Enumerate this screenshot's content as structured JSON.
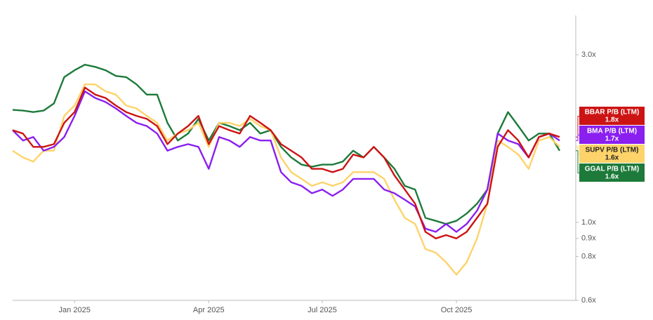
{
  "chart_data": {
    "type": "line",
    "log_scale": true,
    "grid": false,
    "categories": [
      null,
      null,
      null,
      null,
      null,
      null,
      "Jan 2025",
      null,
      null,
      null,
      null,
      null,
      null,
      null,
      null,
      null,
      null,
      null,
      null,
      "Apr 2025",
      null,
      null,
      null,
      null,
      null,
      null,
      null,
      null,
      null,
      null,
      "Jul 2025",
      null,
      null,
      null,
      null,
      null,
      null,
      null,
      null,
      null,
      null,
      null,
      null,
      "Oct 2025",
      null,
      null,
      null,
      null,
      null,
      null,
      null,
      null,
      null,
      null
    ],
    "ylim": [
      0.6,
      3.88
    ],
    "yticks": [
      {
        "value": 0.6,
        "label": "0.6x"
      },
      {
        "value": 0.8,
        "label": "0.8x"
      },
      {
        "value": 0.9,
        "label": "0.9x"
      },
      {
        "value": 1.0,
        "label": "1.0x"
      },
      {
        "value": 3.0,
        "label": "3.0x"
      }
    ],
    "series": [
      {
        "name": "BBAR P/B (LTM)",
        "color": "#cc1414",
        "last_label": "1.8x",
        "values": [
          1.83,
          1.79,
          1.64,
          1.64,
          1.67,
          1.92,
          2.06,
          2.42,
          2.31,
          2.26,
          2.15,
          2.06,
          2.01,
          1.97,
          1.88,
          1.67,
          1.79,
          1.88,
          2.01,
          1.67,
          1.88,
          1.83,
          1.79,
          2.01,
          1.92,
          1.83,
          1.67,
          1.6,
          1.53,
          1.42,
          1.42,
          1.39,
          1.42,
          1.56,
          1.53,
          1.64,
          1.53,
          1.36,
          1.24,
          1.13,
          0.94,
          0.9,
          0.92,
          0.9,
          0.94,
          1.03,
          1.13,
          1.64,
          1.83,
          1.71,
          1.53,
          1.75,
          1.79,
          1.75
        ]
      },
      {
        "name": "BMA P/B (LTM)",
        "color": "#8a1ff0",
        "last_label": "1.7x",
        "values": [
          1.83,
          1.71,
          1.75,
          1.6,
          1.64,
          1.75,
          2.01,
          2.36,
          2.26,
          2.2,
          2.11,
          2.01,
          1.92,
          1.88,
          1.79,
          1.6,
          1.64,
          1.67,
          1.64,
          1.42,
          1.75,
          1.71,
          1.64,
          1.75,
          1.71,
          1.71,
          1.39,
          1.3,
          1.27,
          1.21,
          1.24,
          1.19,
          1.24,
          1.33,
          1.33,
          1.33,
          1.24,
          1.21,
          1.16,
          1.11,
          0.96,
          0.94,
          0.99,
          0.94,
          0.99,
          1.08,
          1.24,
          1.79,
          1.71,
          1.67,
          1.53,
          1.75,
          1.79,
          1.71
        ]
      },
      {
        "name": "SUPV P/B (LTM)",
        "color": "#fdd36a",
        "last_label": "1.6x",
        "values": [
          1.6,
          1.53,
          1.49,
          1.6,
          1.6,
          2.01,
          2.15,
          2.47,
          2.47,
          2.36,
          2.31,
          2.15,
          2.11,
          2.01,
          1.92,
          1.71,
          1.79,
          1.83,
          1.92,
          1.64,
          1.92,
          1.92,
          1.88,
          1.97,
          1.88,
          1.83,
          1.53,
          1.39,
          1.33,
          1.27,
          1.3,
          1.27,
          1.3,
          1.39,
          1.39,
          1.39,
          1.33,
          1.16,
          1.03,
          0.99,
          0.84,
          0.82,
          0.77,
          0.71,
          0.77,
          0.9,
          1.13,
          1.71,
          1.64,
          1.56,
          1.42,
          1.71,
          1.75,
          1.64
        ]
      },
      {
        "name": "GGAL P/B (LTM)",
        "color": "#1d7a3a",
        "last_label": "1.6x",
        "values": [
          2.09,
          2.08,
          2.06,
          2.08,
          2.18,
          2.59,
          2.71,
          2.81,
          2.77,
          2.71,
          2.61,
          2.59,
          2.47,
          2.31,
          2.31,
          1.92,
          1.71,
          1.79,
          1.97,
          1.71,
          1.92,
          1.88,
          1.83,
          1.92,
          1.79,
          1.83,
          1.64,
          1.53,
          1.46,
          1.44,
          1.46,
          1.46,
          1.49,
          1.6,
          1.53,
          1.64,
          1.53,
          1.42,
          1.27,
          1.24,
          1.03,
          1.01,
          0.99,
          1.01,
          1.06,
          1.13,
          1.24,
          1.79,
          2.06,
          1.88,
          1.71,
          1.79,
          1.79,
          1.6
        ]
      }
    ]
  }
}
